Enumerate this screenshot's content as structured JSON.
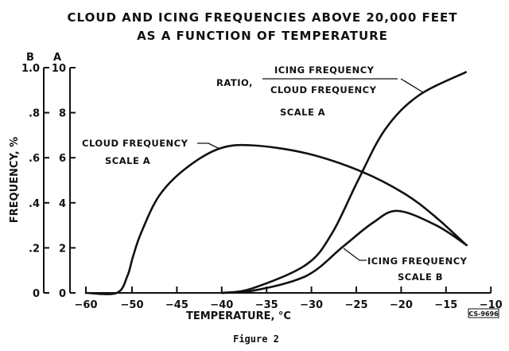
{
  "chart_data": {
    "type": "line",
    "title": "CLOUD AND ICING FREQUENCIES ABOVE 20,000 FEET",
    "subtitle": "AS A FUNCTION OF TEMPERATURE",
    "xlabel": "TEMPERATURE, °C",
    "ylabel": "FREQUENCY, %",
    "xlim": [
      -60,
      -10
    ],
    "x_ticks": [
      -60,
      -50,
      -45,
      -40,
      -35,
      -30,
      -25,
      -20,
      -15,
      -10
    ],
    "y_axes": [
      {
        "name": "B",
        "lim": [
          0,
          1.0
        ],
        "tick_labels": [
          "0",
          ".2",
          ".4",
          ".6",
          ".8",
          "1.0"
        ]
      },
      {
        "name": "A",
        "lim": [
          0,
          10
        ],
        "tick_labels": [
          "0",
          "2",
          "4",
          "6",
          "8",
          "10"
        ]
      }
    ],
    "grid": false,
    "series": [
      {
        "name": "CLOUD FREQUENCY",
        "scale_label": "SCALE A",
        "axis": "A",
        "x": [
          -60,
          -53.3,
          -51.0,
          -49.9,
          -49.0,
          -47.0,
          -44.1,
          -40.3,
          -36.6,
          -30.6,
          -24.5,
          -19.6,
          -16.1,
          -12.8
        ],
        "y": [
          0,
          0,
          0.75,
          1.6,
          2.65,
          4.3,
          5.5,
          6.4,
          6.55,
          6.2,
          5.4,
          4.4,
          3.35,
          2.15
        ]
      },
      {
        "name": "ICING FREQUENCY",
        "scale_label": "SCALE B",
        "axis": "B",
        "x": [
          -40,
          -36.5,
          -30.6,
          -26.5,
          -23.2,
          -20.4,
          -16.1,
          -12.7
        ],
        "y": [
          0,
          0.01,
          0.075,
          0.205,
          0.31,
          0.364,
          0.3,
          0.212
        ]
      },
      {
        "name": "RATIO, ICING FREQUENCY / CLOUD FREQUENCY",
        "ratio_prefix": "RATIO,",
        "numerator": "ICING FREQUENCY",
        "denominator": "CLOUD FREQUENCY",
        "scale_label": "SCALE A",
        "axis": "A",
        "x": [
          -40,
          -36.6,
          -30.6,
          -27.7,
          -24.8,
          -21.8,
          -18.1,
          -12.8
        ],
        "y": [
          0,
          0.2,
          1.25,
          2.65,
          5.0,
          7.25,
          8.75,
          9.8
        ]
      }
    ]
  },
  "figure_code": "CS-9696",
  "caption": "Figure 2"
}
